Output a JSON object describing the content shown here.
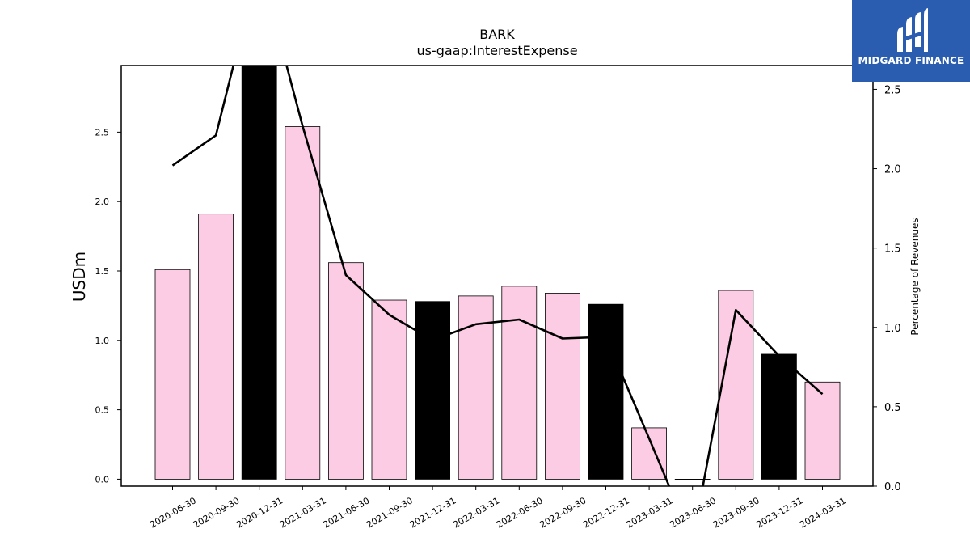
{
  "chart_data": {
    "type": "bar",
    "title": "BARK",
    "subtitle": "us-gaap:InterestExpense",
    "ylabel": "USDm",
    "y2label": "Percentage of Revenues",
    "categories": [
      "2020-06-30",
      "2020-09-30",
      "2020-12-31",
      "2021-03-31",
      "2021-06-30",
      "2021-09-30",
      "2021-12-31",
      "2022-03-31",
      "2022-06-30",
      "2022-09-30",
      "2022-12-31",
      "2023-03-31",
      "2023-06-30",
      "2023-09-30",
      "2023-12-31",
      "2024-03-31"
    ],
    "series": [
      {
        "type": "bar",
        "values": [
          1.51,
          1.91,
          3.1,
          2.54,
          1.56,
          1.29,
          1.28,
          1.32,
          1.39,
          1.34,
          1.26,
          0.37,
          0.0,
          1.36,
          0.9,
          0.7
        ],
        "colors": [
          "#fccce4",
          "#fccce4",
          "#000000",
          "#fccce4",
          "#fccce4",
          "#fccce4",
          "#000000",
          "#fccce4",
          "#fccce4",
          "#fccce4",
          "#000000",
          "#fccce4",
          "#fccce4",
          "#fccce4",
          "#000000",
          "#fccce4"
        ]
      },
      {
        "type": "line",
        "axis": "right",
        "color": "#000000",
        "values": [
          2.02,
          2.21,
          3.3,
          2.27,
          1.33,
          1.08,
          0.92,
          1.02,
          1.05,
          0.93,
          0.94,
          0.3,
          -0.35,
          1.11,
          0.82,
          0.58
        ]
      }
    ],
    "ylim": [
      -0.05,
      2.98
    ],
    "yticks": [
      "0.0",
      "0.5",
      "1.0",
      "1.5",
      "2.0",
      "2.5"
    ],
    "y2lim": [
      0.0,
      2.65
    ],
    "y2ticks": [
      "0.0",
      "0.5",
      "1.0",
      "1.5",
      "2.0",
      "2.5"
    ],
    "grid": false
  },
  "logo": {
    "text": "MIDGARD FINANCE",
    "color": "#2a5db0"
  }
}
